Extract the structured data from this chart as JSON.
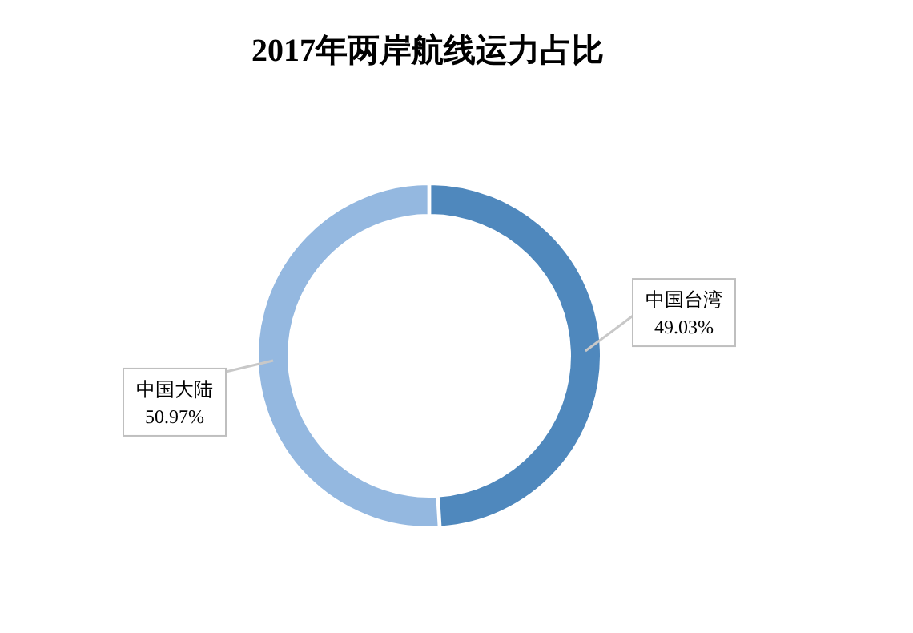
{
  "chart_data": {
    "type": "donut",
    "title": "2017年两岸航线运力占比",
    "categories": [
      "中国台湾",
      "中国大陆"
    ],
    "values": [
      49.03,
      50.97
    ],
    "colors": [
      "#4f88bd",
      "#94b8e0"
    ],
    "value_labels": [
      "49.03%",
      "50.97%"
    ],
    "legend": false
  }
}
